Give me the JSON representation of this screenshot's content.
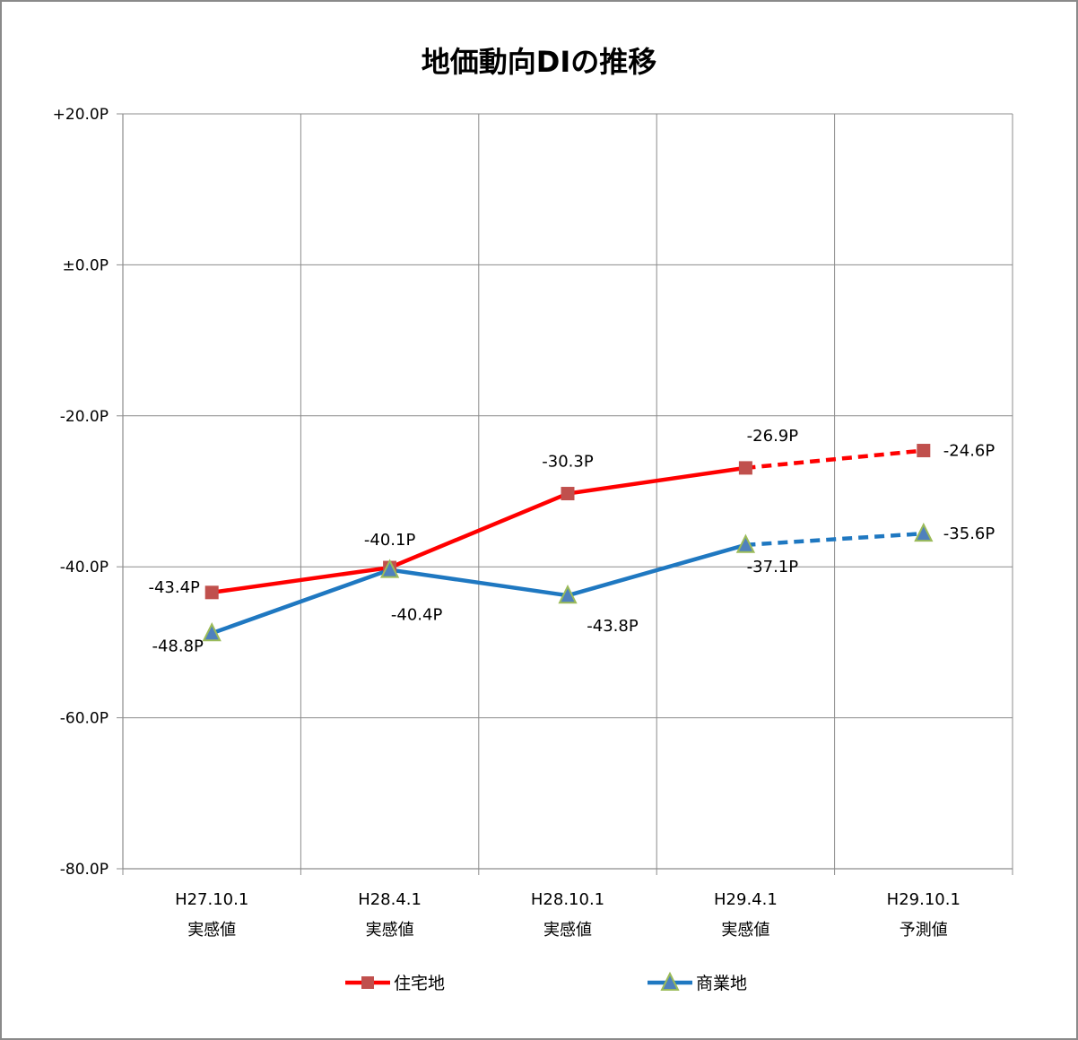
{
  "chart_data": {
    "type": "line",
    "title": "地価動向DIの推移",
    "ylim": [
      -80,
      20
    ],
    "y_ticks": [
      {
        "value": 20,
        "label": "+20.0P"
      },
      {
        "value": 0,
        "label": "±0.0P"
      },
      {
        "value": -20,
        "label": "-20.0P"
      },
      {
        "value": -40,
        "label": "-40.0P"
      },
      {
        "value": -60,
        "label": "-60.0P"
      },
      {
        "value": -80,
        "label": "-80.0P"
      }
    ],
    "categories": [
      {
        "line1": "H27.10.1",
        "line2": "実感値"
      },
      {
        "line1": "H28.4.1",
        "line2": "実感値"
      },
      {
        "line1": "H28.10.1",
        "line2": "実感値"
      },
      {
        "line1": "H29.4.1",
        "line2": "実感値"
      },
      {
        "line1": "H29.10.1",
        "line2": "予測値"
      }
    ],
    "grid": true,
    "legend_position": "bottom",
    "series": [
      {
        "name": "住宅地",
        "color": "#ff0000",
        "marker": "square",
        "marker_color": "#c0504d",
        "values": [
          -43.4,
          -40.1,
          -30.3,
          -26.9,
          -24.6
        ],
        "labels": [
          "-43.4P",
          "-40.1P",
          "-30.3P",
          "-26.9P",
          "-24.6P"
        ],
        "dashed_from_index": 3
      },
      {
        "name": "商業地",
        "color": "#1f78c1",
        "marker": "triangle",
        "marker_color": "#4f81bd",
        "values": [
          -48.8,
          -40.4,
          -43.8,
          -37.1,
          -35.6
        ],
        "labels": [
          "-48.8P",
          "-40.4P",
          "-43.8P",
          "-37.1P",
          "-35.6P"
        ],
        "dashed_from_index": 3
      }
    ]
  }
}
